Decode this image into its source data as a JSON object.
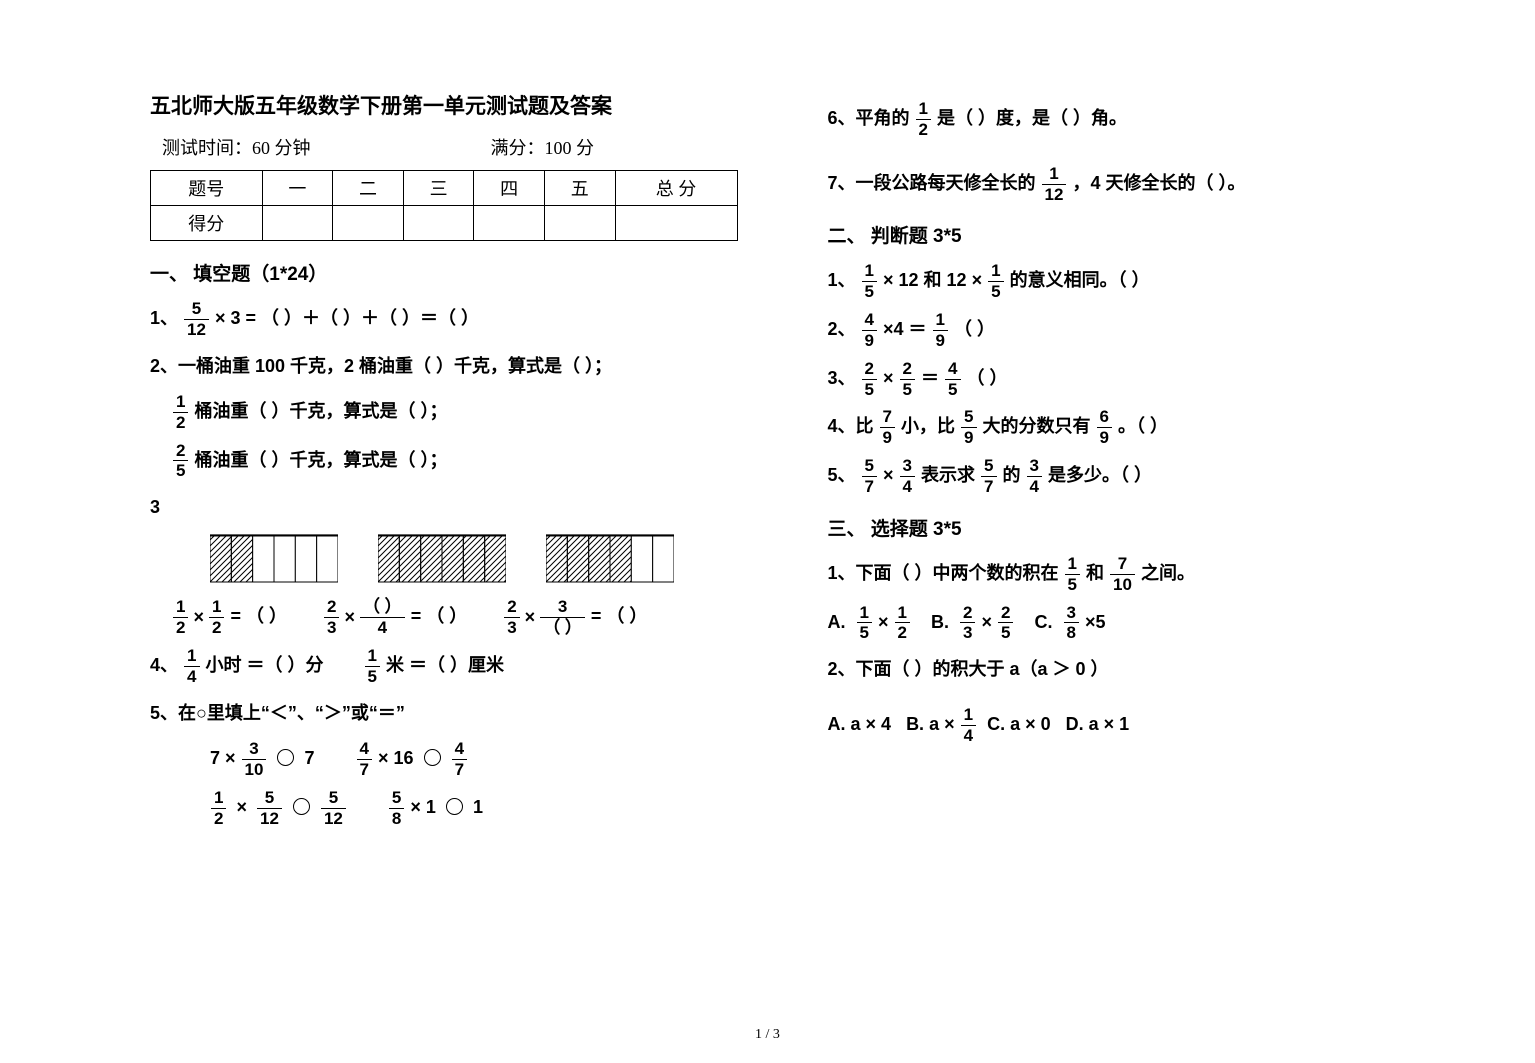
{
  "title": "五北师大版五年级数学下册第一单元测试题及答案",
  "meta": {
    "time_label": "测试时间：",
    "time_val": "60 分钟",
    "full_label": "满分：",
    "full_val": "100 分"
  },
  "score_table": {
    "headers": [
      "题号",
      "一",
      "二",
      "三",
      "四",
      "五",
      "总 分"
    ],
    "row_label": "得分"
  },
  "sectionA": {
    "heading": "一、 填空题（1*24）",
    "q1": {
      "num": "1、",
      "frac_n": "5",
      "frac_d": "12",
      "text": " × 3 = （   ）＋（   ）＋（   ）＝（   ）"
    },
    "q2": {
      "num": "2、",
      "line1a": "一桶油重 100 千克，2 桶油重（     ）千克，算式是（            ）；",
      "line2_frac_n": "1",
      "line2_frac_d": "2",
      "line2_text": " 桶油重（    ）千克，算式是（            ）；",
      "line3_frac_n": "2",
      "line3_frac_d": "5",
      "line3_text": " 桶油重（    ）千克，算式是（            ）；"
    },
    "q3": {
      "num": "3",
      "boxes": {
        "w": 128,
        "h": 46,
        "cols": 6,
        "hatch_stroke": "#000000",
        "fills": [
          2,
          6,
          4
        ]
      },
      "eqs": [
        {
          "a_n": "1",
          "a_d": "2",
          "b_n": "1",
          "b_d": "2",
          "tail": " = （   ）"
        },
        {
          "a_n": "2",
          "a_d": "3",
          "b_n": "（ ）",
          "b_d": "4",
          "tail": " = （   ）"
        },
        {
          "a_n": "2",
          "a_d": "3",
          "b_n": "3",
          "b_d": "（ ）",
          "tail": " = （   ）"
        }
      ]
    },
    "q4": {
      "num": "4、",
      "p1_frac_n": "1",
      "p1_frac_d": "4",
      "p1_text": " 小时 ＝（    ）分",
      "p2_frac_n": "1",
      "p2_frac_d": "5",
      "p2_text": " 米 ＝（    ）厘米"
    },
    "q5": {
      "num": "5、",
      "text": "在○里填上“＜”、“＞”或“＝”",
      "r1a_pre": "7 ×",
      "r1a_n": "3",
      "r1a_d": "10",
      "r1a_post": "7",
      "r1b_n": "4",
      "r1b_d": "7",
      "r1b_mid": " × 16",
      "r1b_post_n": "4",
      "r1b_post_d": "7",
      "r2a_n1": "1",
      "r2a_d1": "2",
      "r2a_n2": "5",
      "r2a_d2": "12",
      "r2a_post_n": "5",
      "r2a_post_d": "12",
      "r2b_n": "5",
      "r2b_d": "8",
      "r2b_mid": " × 1",
      "r2b_post": "1"
    }
  },
  "right": {
    "q6": {
      "num": "6、",
      "pre": "平角的",
      "n": "1",
      "d": "2",
      "text": " 是（     ）度，是（   ）角。"
    },
    "q7": {
      "num": "7、",
      "pre": "一段公路每天修全长的",
      "n": "1",
      "d": "12",
      "text": "，4 天修全长的（     ）。"
    },
    "sectionB_h": "二、 判断题 3*5",
    "b1": {
      "num": "1、",
      "n": "1",
      "d": "5",
      "mid": " × 12 和 12 × ",
      "n2": "1",
      "d2": "5",
      "tail": " 的意义相同。（    ）"
    },
    "b2": {
      "num": "2、",
      "n": "4",
      "d": "9",
      "mid": " ×4 ＝ ",
      "n2": "1",
      "d2": "9",
      "tail": " （    ）"
    },
    "b3": {
      "num": "3、",
      "n": "2",
      "d": "5",
      "mid": " × ",
      "n2": "2",
      "d2": "5",
      "eq": " ＝ ",
      "n3": "4",
      "d3": "5",
      "tail": " （    ）"
    },
    "b4": {
      "num": "4、",
      "pre": "比",
      "n": "7",
      "d": "9",
      "mid": " 小，比",
      "n2": "5",
      "d2": "9",
      "mid2": " 大的分数只有",
      "n3": "6",
      "d3": "9",
      "tail": " 。（    ）"
    },
    "b5": {
      "num": "5、",
      "n": "5",
      "d": "7",
      "mid": " × ",
      "n2": "3",
      "d2": "4",
      "mid2": " 表示求",
      "n3": "5",
      "d3": "7",
      "mid3": " 的",
      "n4": "3",
      "d4": "4",
      "tail": " 是多少。（    ）"
    },
    "sectionC_h": "三、 选择题 3*5",
    "c1": {
      "num": "1、",
      "text": "下面（   ）中两个数的积在",
      "n": "1",
      "d": "5",
      "mid": " 和",
      "n2": "7",
      "d2": "10",
      "tail": "之间。",
      "optA": "A.",
      "a_n1": "1",
      "a_d1": "5",
      "a_mid": " × ",
      "a_n2": "1",
      "a_d2": "2",
      "optB": "B.",
      "b_n1": "2",
      "b_d1": "3",
      "b_mid": " × ",
      "b_n2": "2",
      "b_d2": "5",
      "optC": "C.",
      "c_n1": "3",
      "c_d1": "8",
      "c_tail": " ×5"
    },
    "c2": {
      "num": "2、",
      "text": "下面（   ）的积大于 a（a ＞ 0 ）",
      "optA": "A.  a × 4",
      "optB": "B. a ×",
      "b_n": "1",
      "b_d": "4",
      "optC": "C.  a × 0",
      "optD": "D.  a × 1"
    }
  },
  "footer": "1 / 3"
}
